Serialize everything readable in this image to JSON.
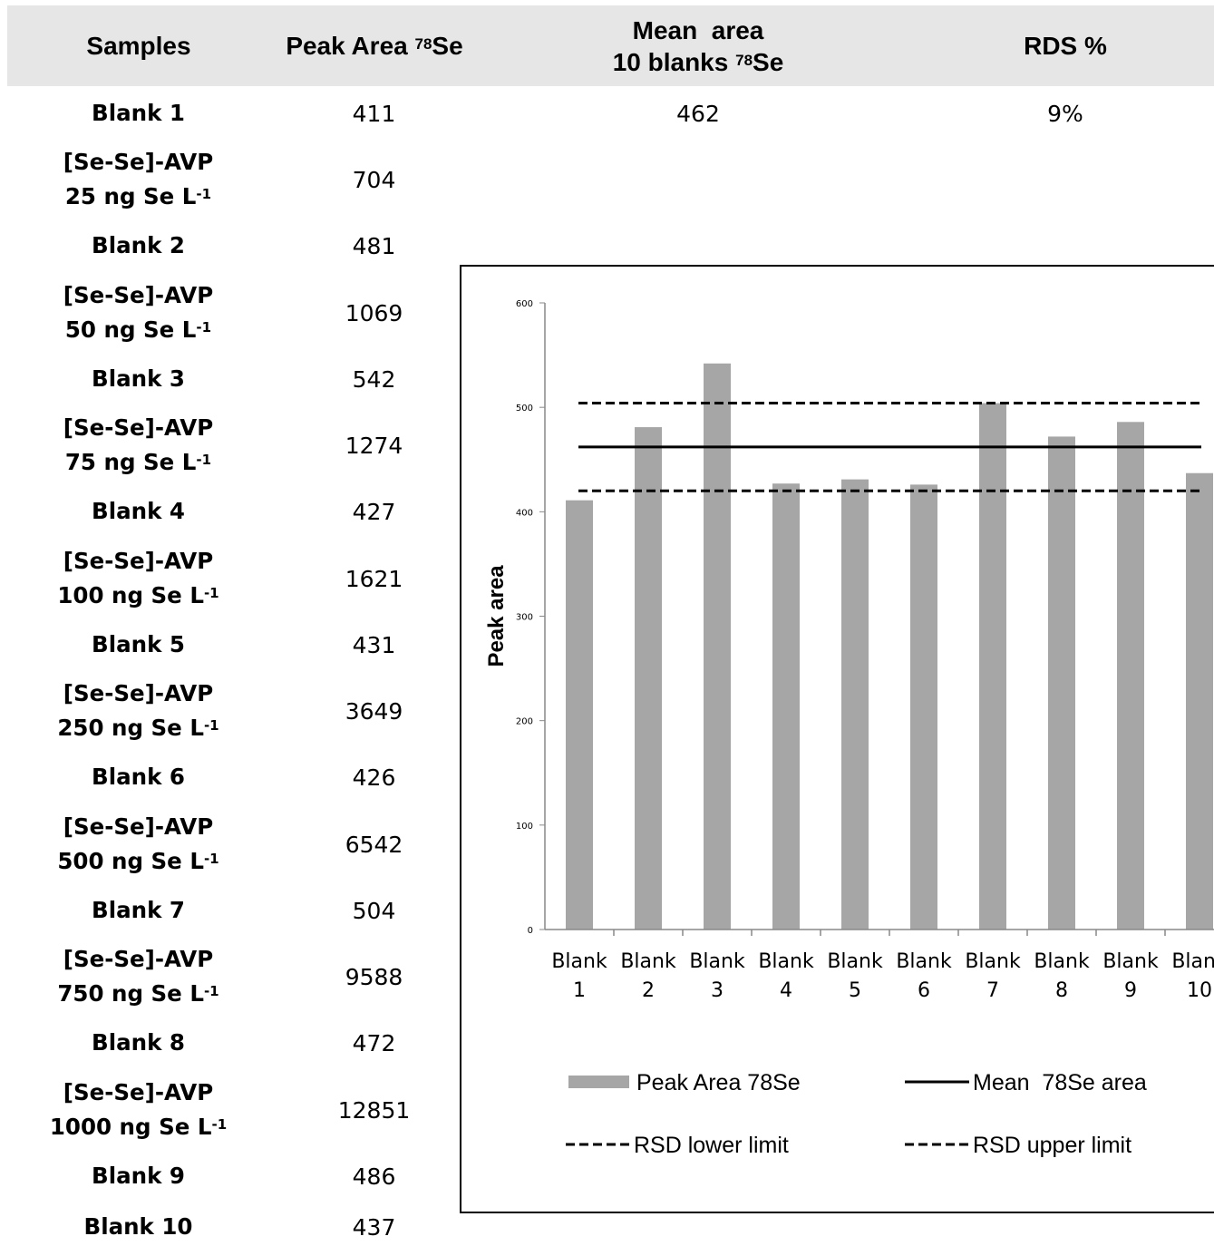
{
  "table": {
    "headers": {
      "samples": "Samples",
      "peak_prefix": "Peak Area ",
      "peak_sup": "78",
      "peak_suffix": "Se",
      "mean_line1": "Mean  area",
      "mean_prefix": "10 blanks ",
      "mean_sup": "78",
      "mean_suffix": "Se",
      "rds": "RDS %"
    },
    "rows": [
      {
        "line1": "Blank 1",
        "line2": "",
        "sup": "",
        "peak": "411",
        "mean": "462",
        "rds": "9%"
      },
      {
        "line1": "[Se-Se]-AVP",
        "line2": "25 ng Se L",
        "sup": "-1",
        "peak": "704",
        "mean": "",
        "rds": ""
      },
      {
        "line1": "Blank 2",
        "line2": "",
        "sup": "",
        "peak": "481",
        "mean": "",
        "rds": ""
      },
      {
        "line1": "[Se-Se]-AVP",
        "line2": "50 ng Se L",
        "sup": "-1",
        "peak": "1069",
        "mean": "",
        "rds": ""
      },
      {
        "line1": "Blank 3",
        "line2": "",
        "sup": "",
        "peak": "542",
        "mean": "",
        "rds": ""
      },
      {
        "line1": "[Se-Se]-AVP",
        "line2": "75 ng Se L",
        "sup": "-1",
        "peak": "1274",
        "mean": "",
        "rds": ""
      },
      {
        "line1": "Blank 4",
        "line2": "",
        "sup": "",
        "peak": "427",
        "mean": "",
        "rds": ""
      },
      {
        "line1": "[Se-Se]-AVP",
        "line2": "100 ng Se L",
        "sup": "-1",
        "peak": "1621",
        "mean": "",
        "rds": ""
      },
      {
        "line1": "Blank 5",
        "line2": "",
        "sup": "",
        "peak": "431",
        "mean": "",
        "rds": ""
      },
      {
        "line1": "[Se-Se]-AVP",
        "line2": "250 ng Se L",
        "sup": "-1",
        "peak": "3649",
        "mean": "",
        "rds": ""
      },
      {
        "line1": "Blank 6",
        "line2": "",
        "sup": "",
        "peak": "426",
        "mean": "",
        "rds": ""
      },
      {
        "line1": "[Se-Se]-AVP",
        "line2": "500 ng Se L",
        "sup": "-1",
        "peak": "6542",
        "mean": "",
        "rds": ""
      },
      {
        "line1": "Blank 7",
        "line2": "",
        "sup": "",
        "peak": "504",
        "mean": "",
        "rds": ""
      },
      {
        "line1": "[Se-Se]-AVP",
        "line2": "750 ng Se L",
        "sup": "-1",
        "peak": "9588",
        "mean": "",
        "rds": ""
      },
      {
        "line1": "Blank 8",
        "line2": "",
        "sup": "",
        "peak": "472",
        "mean": "",
        "rds": ""
      },
      {
        "line1": "[Se-Se]-AVP",
        "line2": "1000 ng Se L",
        "sup": "-1",
        "peak": "12851",
        "mean": "",
        "rds": ""
      },
      {
        "line1": "Blank 9",
        "line2": "",
        "sup": "",
        "peak": "486",
        "mean": "",
        "rds": ""
      },
      {
        "line1": "Blank 10",
        "line2": "",
        "sup": "",
        "peak": "437",
        "mean": "",
        "rds": ""
      }
    ]
  },
  "chart_data": {
    "type": "bar",
    "ylabel": "Peak area",
    "xlabel": "",
    "ylim": [
      0,
      600
    ],
    "yticks": [
      "0",
      "100",
      "200",
      "300",
      "400",
      "500",
      "600"
    ],
    "categories": [
      [
        "Blank",
        "1"
      ],
      [
        "Blank",
        "2"
      ],
      [
        "Blank",
        "3"
      ],
      [
        "Blank",
        "4"
      ],
      [
        "Blank",
        "5"
      ],
      [
        "Blank",
        "6"
      ],
      [
        "Blank",
        "7"
      ],
      [
        "Blank",
        "8"
      ],
      [
        "Blank",
        "9"
      ],
      [
        "Blank",
        "10"
      ]
    ],
    "series": [
      {
        "name": "Peak Area 78Se",
        "kind": "bar",
        "color": "#a6a6a6",
        "values": [
          411,
          481,
          542,
          427,
          431,
          426,
          504,
          472,
          486,
          437
        ]
      },
      {
        "name": "Mean  78Se area",
        "kind": "line",
        "style": "solid",
        "color": "#000000",
        "value": 462
      },
      {
        "name": "RSD lower limit",
        "kind": "line",
        "style": "dashed",
        "color": "#000000",
        "value": 420
      },
      {
        "name": "RSD upper limit",
        "kind": "line",
        "style": "dashed",
        "color": "#000000",
        "value": 504
      }
    ],
    "grid": false,
    "legend_position": "bottom"
  }
}
